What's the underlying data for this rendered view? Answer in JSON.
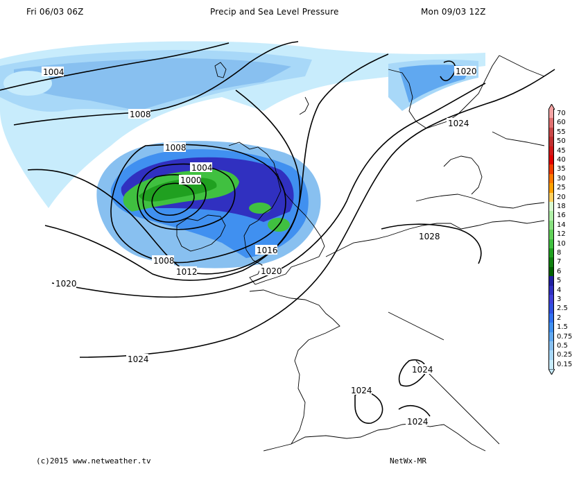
{
  "header": {
    "left": "Fri 06/03 06Z",
    "center": "Precip and Sea Level Pressure",
    "right": "Mon 09/03 12Z"
  },
  "footer": {
    "left": "(c)2015 www.netweather.tv",
    "right": "NetWx-MR"
  },
  "isobar_labels": [
    "1004",
    "1008",
    "1008",
    "1004",
    "1000",
    "1008",
    "1012",
    "1016",
    "1020",
    "1020",
    "1024",
    "1020",
    "1024",
    "1028",
    "1024",
    "1024",
    "1024"
  ],
  "legend": {
    "values": [
      "70",
      "60",
      "55",
      "50",
      "45",
      "40",
      "35",
      "30",
      "25",
      "20",
      "18",
      "16",
      "14",
      "12",
      "10",
      "8",
      "7",
      "6",
      "5",
      "4",
      "3",
      "2.5",
      "2",
      "1.5",
      "0.75",
      "0.5",
      "0.25",
      "0.15"
    ],
    "colors": [
      "#f4a4a4",
      "#e07070",
      "#c84848",
      "#c03030",
      "#d01818",
      "#e00000",
      "#f03c00",
      "#ff7800",
      "#ffa000",
      "#ffd060",
      "#d8f8d0",
      "#b0f0a8",
      "#88e080",
      "#60d058",
      "#40c040",
      "#20a020",
      "#108010",
      "#006000",
      "#2020a0",
      "#3030c0",
      "#4040d8",
      "#3050e0",
      "#3070f0",
      "#4090f0",
      "#60a8f0",
      "#88c0f0",
      "#a8d8f8",
      "#c8ecfc"
    ]
  }
}
